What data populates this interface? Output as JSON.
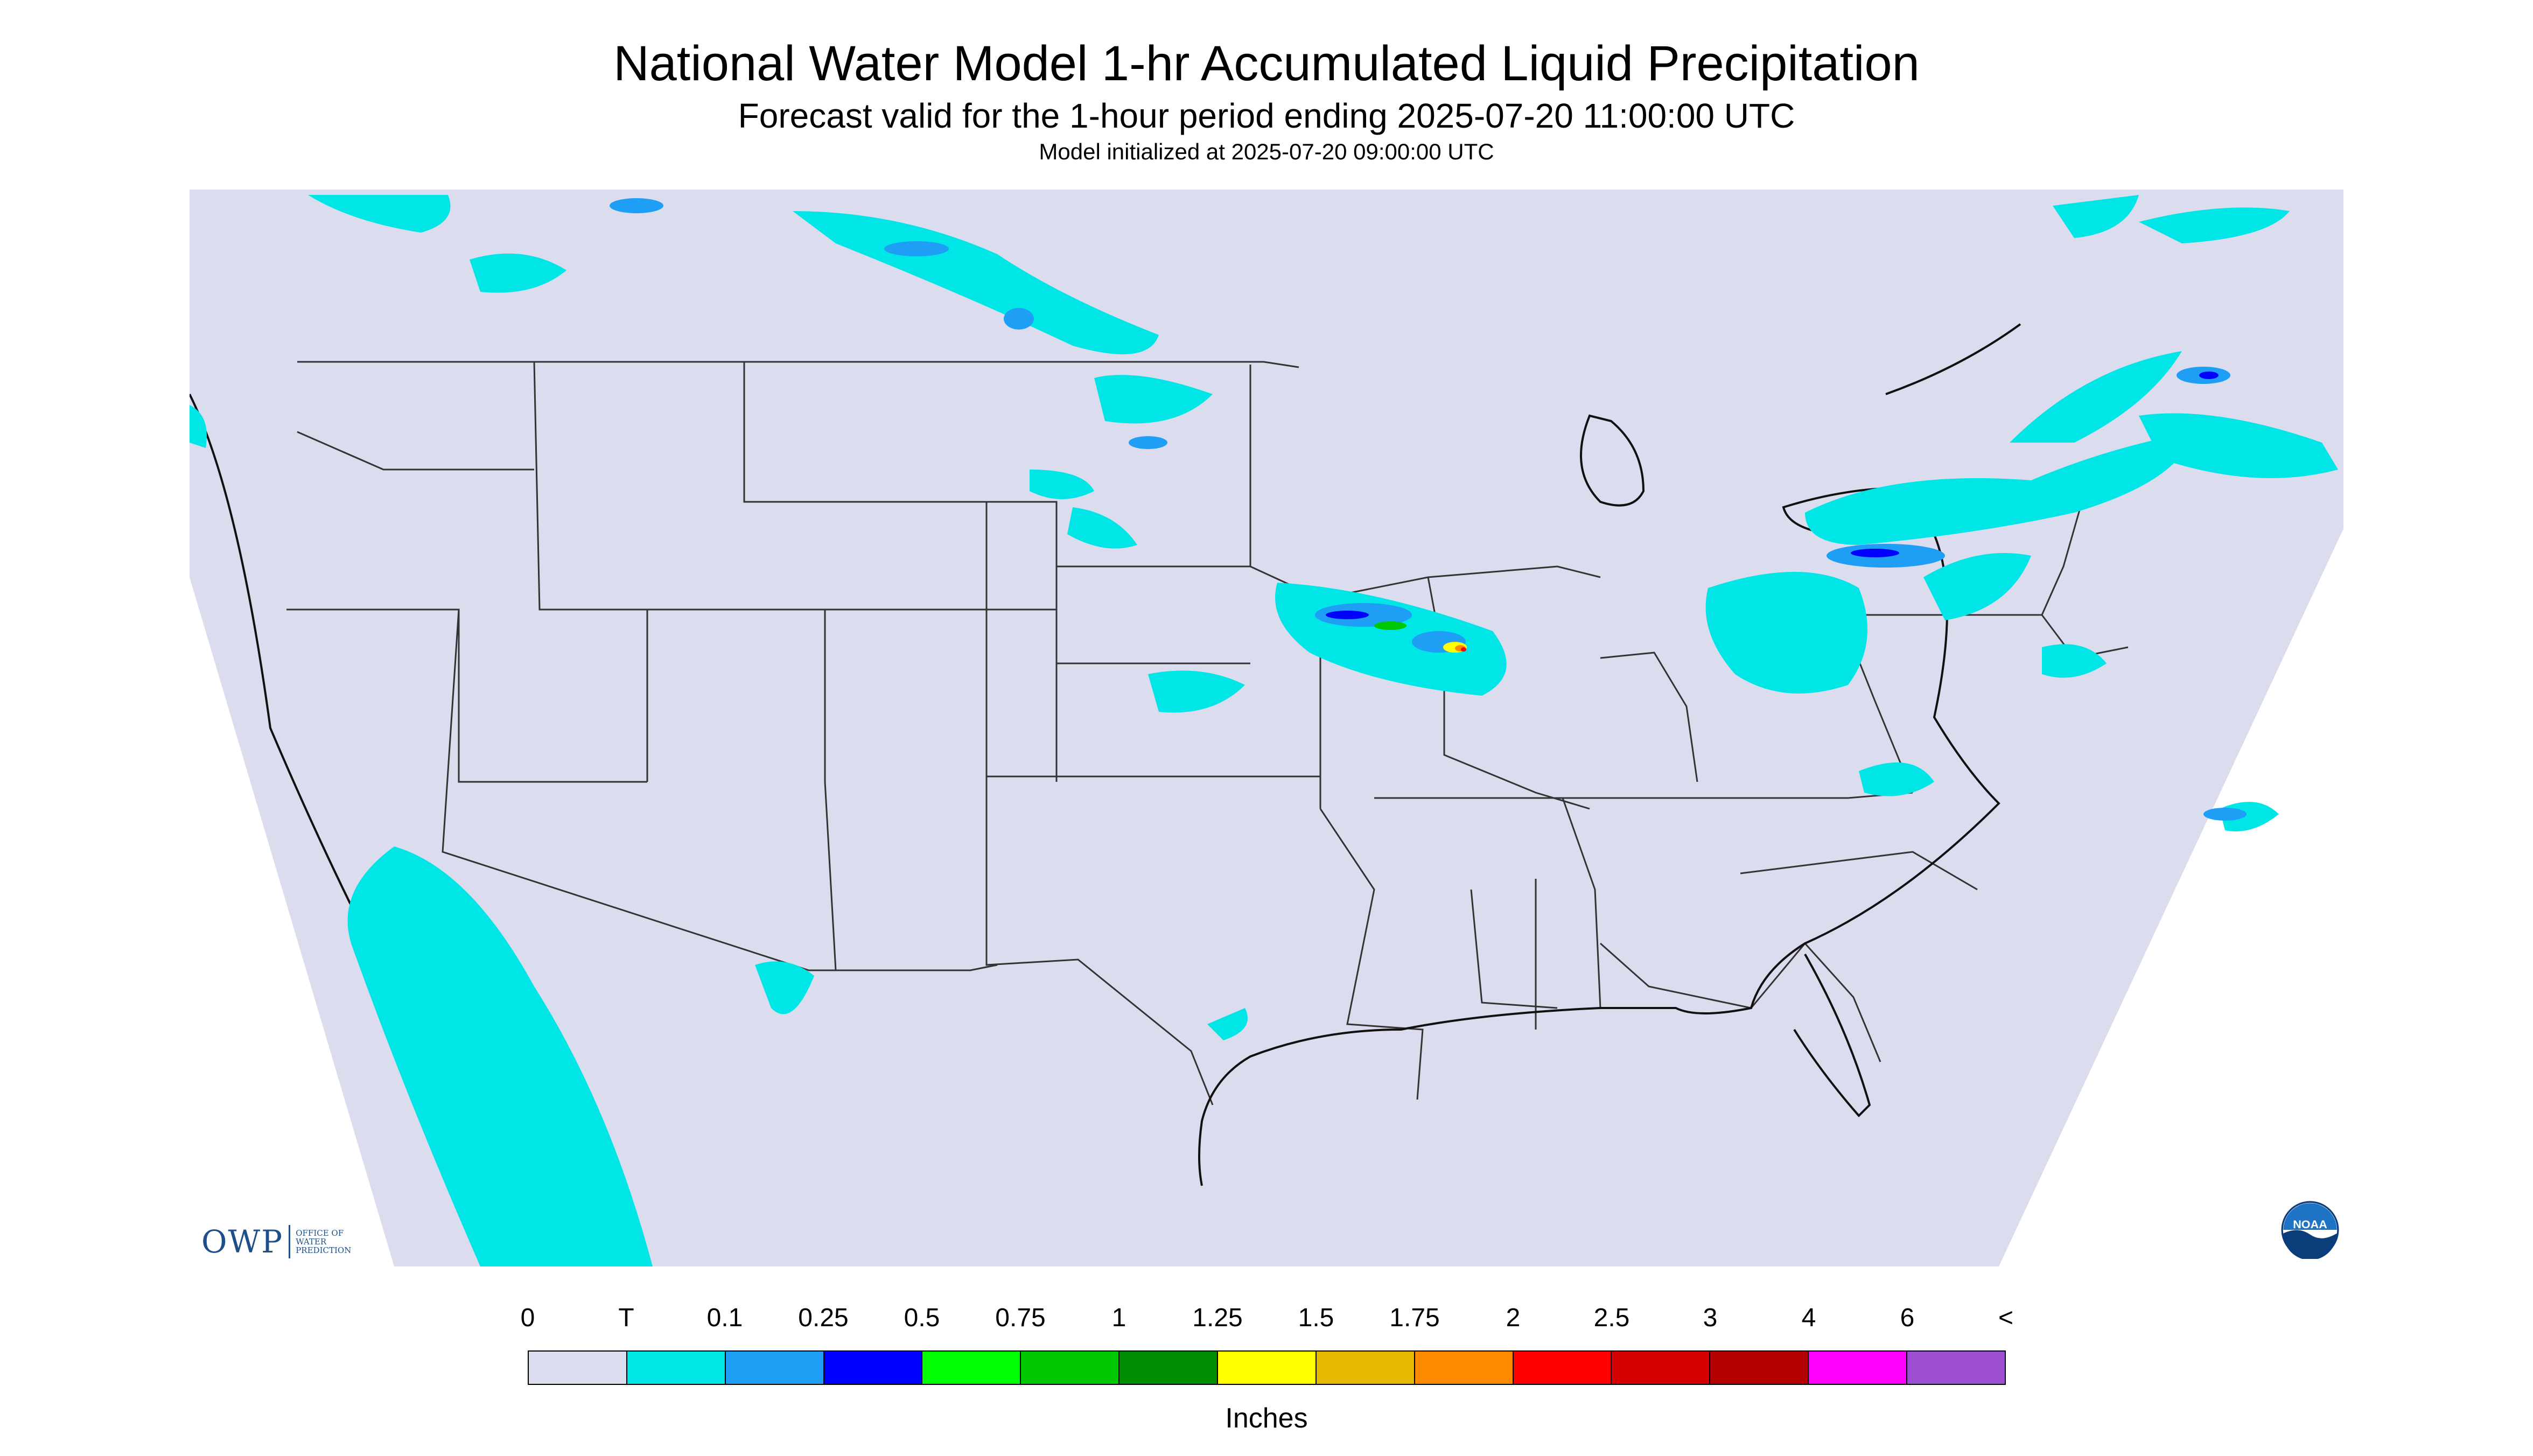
{
  "title": "National Water Model 1-hr Accumulated Liquid Precipitation",
  "subtitle": "Forecast valid for the 1-hour period ending 2025-07-20 11:00:00 UTC",
  "init_line": "Model initialized at 2025-07-20 09:00:00 UTC",
  "logos": {
    "owp_mark": "OWP",
    "owp_name": "Office of Water Prediction",
    "noaa": "NOAA"
  },
  "legend": {
    "labels": [
      "0",
      "T",
      "0.1",
      "0.25",
      "0.5",
      "0.75",
      "1",
      "1.25",
      "1.5",
      "1.75",
      "2",
      "2.5",
      "3",
      "4",
      "6",
      "<"
    ],
    "colors": [
      "#dcdcef",
      "#00e5e5",
      "#1e9ef5",
      "#0000ff",
      "#00ff00",
      "#00c800",
      "#008c00",
      "#ffff00",
      "#e6b800",
      "#ff8c00",
      "#ff0000",
      "#d70000",
      "#b40000",
      "#ff00ff",
      "#9c4fd0"
    ],
    "units": "Inches"
  },
  "map": {
    "projection_fill": "#dcdcef",
    "outside_fill": "#ffffff",
    "precip_areas": [
      {
        "region": "Pacific offshore / Baja",
        "level": "T"
      },
      {
        "region": "Southern Canadian Prairies",
        "level": "0.25"
      },
      {
        "region": "Manitoba / Minnesota border",
        "level": "0.25"
      },
      {
        "region": "North Dakota",
        "level": "0.25"
      },
      {
        "region": "Nebraska / Kansas",
        "level": "T"
      },
      {
        "region": "Iowa / Illinois",
        "level": "2"
      },
      {
        "region": "Ohio Valley / Great Lakes",
        "level": "0.25"
      },
      {
        "region": "St. Lawrence / Ontario",
        "level": "0.5"
      },
      {
        "region": "Quebec",
        "level": "0.5"
      },
      {
        "region": "Northeast US",
        "level": "T"
      },
      {
        "region": "Atlantic offshore",
        "level": "0.25"
      },
      {
        "region": "Gulf Coast",
        "level": "T"
      },
      {
        "region": "New Mexico",
        "level": "T"
      },
      {
        "region": "Pacific Northwest coast",
        "level": "T"
      }
    ]
  }
}
